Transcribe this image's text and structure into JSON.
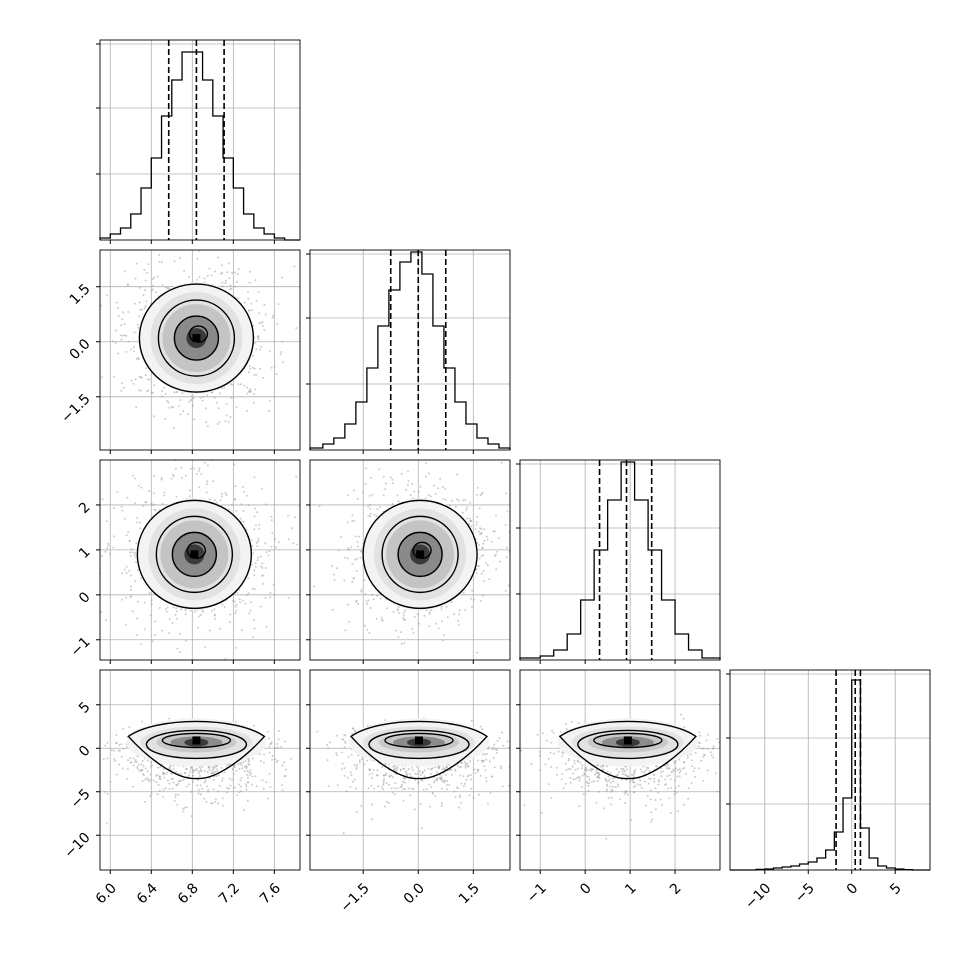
{
  "chart_data": {
    "type": "corner",
    "parameters": [
      {
        "index": 0,
        "range": [
          5.9,
          7.85
        ],
        "ticks": [
          6.0,
          6.4,
          6.8,
          7.2,
          7.6
        ],
        "tick_labels": [
          "6.0",
          "6.4",
          "6.8",
          "7.2",
          "7.6"
        ],
        "quantiles": [
          6.57,
          6.84,
          7.11
        ],
        "hist_bin_edges": [
          5.9,
          6.0,
          6.1,
          6.2,
          6.3,
          6.4,
          6.5,
          6.6,
          6.7,
          6.8,
          6.9,
          7.0,
          7.1,
          7.2,
          7.3,
          7.4,
          7.5,
          7.6,
          7.7,
          7.85
        ],
        "hist_heights": [
          0.01,
          0.03,
          0.06,
          0.13,
          0.26,
          0.41,
          0.62,
          0.8,
          0.94,
          0.94,
          0.8,
          0.62,
          0.41,
          0.26,
          0.13,
          0.06,
          0.03,
          0.01,
          0.0
        ]
      },
      {
        "index": 1,
        "range": [
          -2.95,
          2.5
        ],
        "ticks": [
          -1.5,
          0.0,
          1.5
        ],
        "tick_labels": [
          "−1.5",
          "0.0",
          "1.5"
        ],
        "quantiles": [
          -0.75,
          0.0,
          0.75
        ],
        "hist_bin_edges": [
          -2.95,
          -2.6,
          -2.3,
          -2.0,
          -1.7,
          -1.4,
          -1.1,
          -0.8,
          -0.5,
          -0.2,
          0.1,
          0.4,
          0.7,
          1.0,
          1.3,
          1.6,
          1.9,
          2.2,
          2.5
        ],
        "hist_heights": [
          0.01,
          0.03,
          0.06,
          0.13,
          0.24,
          0.41,
          0.62,
          0.8,
          0.94,
          0.99,
          0.88,
          0.62,
          0.41,
          0.24,
          0.13,
          0.06,
          0.03,
          0.01
        ]
      },
      {
        "index": 2,
        "range": [
          -1.45,
          3.0
        ],
        "ticks": [
          -1,
          0,
          1,
          2
        ],
        "tick_labels": [
          "−1",
          "0",
          "1",
          "2"
        ],
        "quantiles": [
          0.32,
          0.92,
          1.48
        ],
        "hist_bin_edges": [
          -1.45,
          -1.0,
          -0.7,
          -0.4,
          -0.1,
          0.2,
          0.5,
          0.8,
          1.1,
          1.4,
          1.7,
          2.0,
          2.3,
          2.6,
          3.0
        ],
        "hist_heights": [
          0.01,
          0.02,
          0.05,
          0.13,
          0.3,
          0.55,
          0.8,
          0.99,
          0.8,
          0.55,
          0.3,
          0.13,
          0.05,
          0.01
        ]
      },
      {
        "index": 3,
        "range": [
          -14,
          9
        ],
        "ticks": [
          -10,
          -5,
          0,
          5
        ],
        "tick_labels": [
          "−10",
          "−5",
          "0",
          "5"
        ],
        "quantiles": [
          -1.8,
          0.4,
          1.0
        ],
        "hist_bin_edges": [
          -14,
          -13,
          -12,
          -11,
          -10,
          -9,
          -8,
          -7,
          -6,
          -5,
          -4,
          -3,
          -2,
          -1,
          0,
          1,
          2,
          3,
          4,
          5,
          6,
          7,
          8,
          9
        ],
        "hist_heights": [
          0.0,
          0.0,
          0.0,
          0.003,
          0.005,
          0.01,
          0.015,
          0.02,
          0.03,
          0.04,
          0.06,
          0.1,
          0.19,
          0.36,
          0.95,
          0.21,
          0.06,
          0.02,
          0.01,
          0.005,
          0.002,
          0.0,
          0.0
        ]
      }
    ],
    "pairs": [
      {
        "x": 0,
        "y": 1,
        "center": [
          6.84,
          0.1
        ],
        "ylim": [
          -2.95,
          2.5
        ],
        "yticks": [
          -1.5,
          0.0,
          1.5
        ],
        "ytick_labels": [
          "−1.5",
          "0.0",
          "1.5"
        ]
      },
      {
        "x": 0,
        "y": 2,
        "center": [
          6.82,
          0.9
        ],
        "ylim": [
          -1.45,
          3.0
        ],
        "yticks": [
          -1,
          0,
          1,
          2
        ],
        "ytick_labels": [
          "−1",
          "0",
          "1",
          "2"
        ]
      },
      {
        "x": 1,
        "y": 2,
        "center": [
          0.05,
          0.9
        ]
      },
      {
        "x": 0,
        "y": 3,
        "center": [
          6.84,
          0.9
        ],
        "ylim": [
          -14,
          9
        ],
        "yticks": [
          -10,
          -5,
          0,
          5
        ],
        "ytick_labels": [
          "−10",
          "−5",
          "0",
          "5"
        ]
      },
      {
        "x": 1,
        "y": 3,
        "center": [
          0.02,
          0.9
        ]
      },
      {
        "x": 2,
        "y": 3,
        "center": [
          0.95,
          0.9
        ]
      }
    ],
    "grid": true,
    "colors": {
      "density": "#000000",
      "scatter": "#b0b0b0",
      "grid": "#b0b0b0"
    }
  }
}
